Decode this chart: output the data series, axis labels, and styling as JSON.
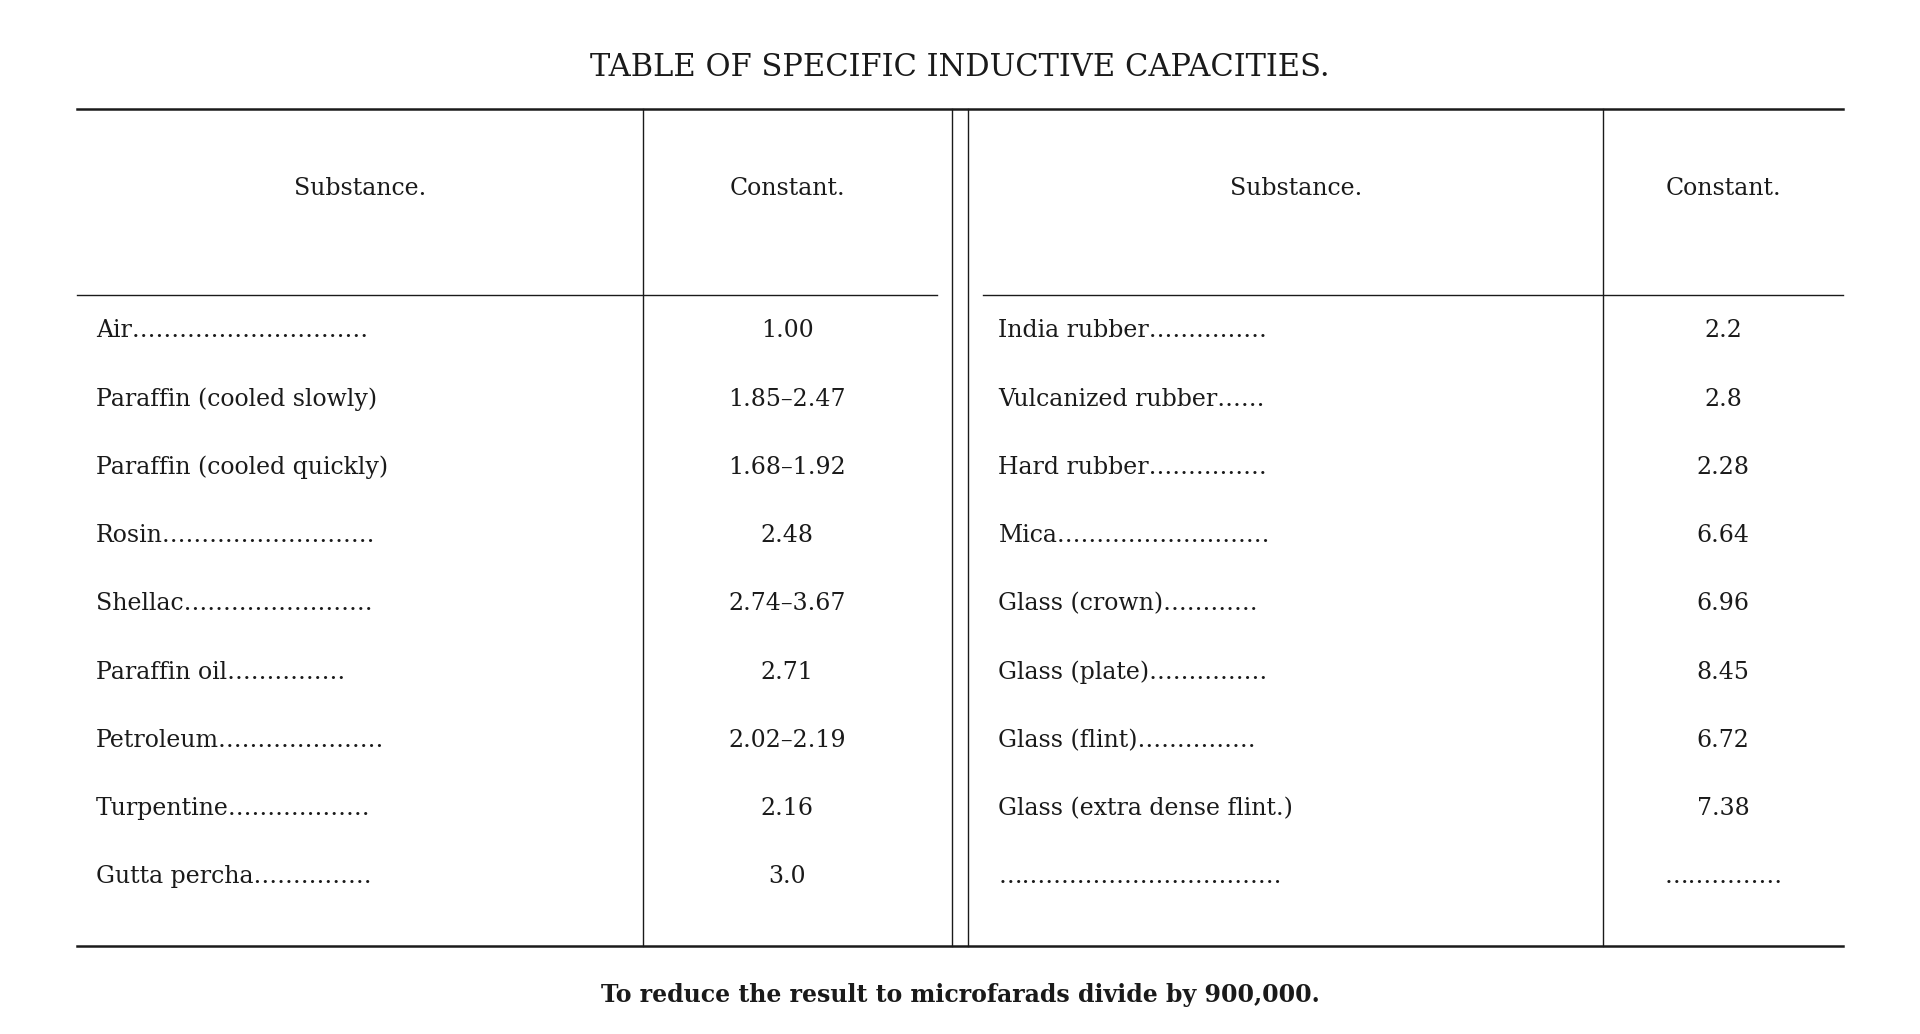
{
  "title": "TABLE OF SPECIFIC INDUCTIVE CAPACITIES.",
  "footer": "To reduce the result to microfarads divide by 900,000.",
  "col_headers": [
    "Substance.",
    "Constant.",
    "Substance.",
    "Constant."
  ],
  "left_substances": [
    "Air…………………………",
    "Paraffin (cooled slowly)",
    "Paraffin (cooled quickly)",
    "Rosin………………………",
    "Shellac……………………",
    "Paraffin oil……………",
    "Petroleum…………………",
    "Turpentine………………",
    "Gutta percha……………"
  ],
  "left_constants": [
    "1.00",
    "1.85–2.47",
    "1.68–1.92",
    "2.48",
    "2.74–3.67",
    "2.71",
    "2.02–2.19",
    "2.16",
    "3.0"
  ],
  "right_substances": [
    "India rubber……………",
    "Vulcanized rubber……",
    "Hard rubber……………",
    "Mica………………………",
    "Glass (crown)…………",
    "Glass (plate)……………",
    "Glass (flint)……………",
    "Glass (extra dense flint.)",
    "………………………………"
  ],
  "right_constants": [
    "2.2",
    "2.8",
    "2.28",
    "6.64",
    "6.96",
    "8.45",
    "6.72",
    "7.38",
    "……………"
  ],
  "bg_color": "#ffffff",
  "text_color": "#1a1a1a",
  "title_fontsize": 22,
  "header_fontsize": 17,
  "body_fontsize": 17,
  "footer_fontsize": 17
}
